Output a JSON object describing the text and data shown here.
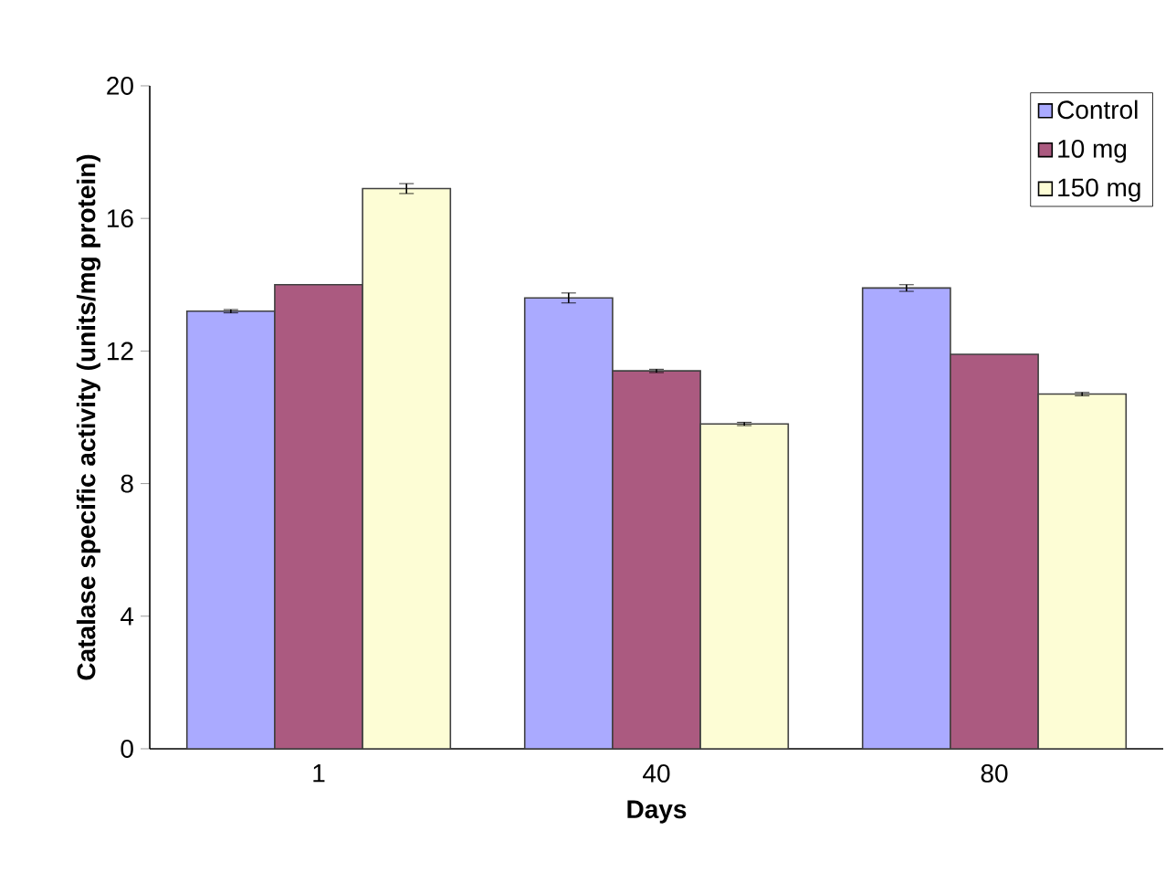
{
  "chart_data": {
    "type": "bar",
    "xlabel": "Days",
    "ylabel": "Catalase specific activity (units/mg protein)",
    "categories": [
      "1",
      "40",
      "80"
    ],
    "series": [
      {
        "name": "Control",
        "color": "#aaaaff",
        "values": [
          13.2,
          13.6,
          13.9
        ],
        "errors": [
          0.05,
          0.15,
          0.1
        ]
      },
      {
        "name": "10 mg",
        "color": "#ab5a80",
        "values": [
          14.0,
          11.4,
          11.9
        ],
        "errors": [
          null,
          0.05,
          null
        ]
      },
      {
        "name": "150 mg",
        "color": "#fdfdd5",
        "values": [
          16.9,
          9.8,
          10.7
        ],
        "errors": [
          0.15,
          0.05,
          0.05
        ]
      }
    ],
    "ylim": [
      0,
      20
    ],
    "yticks": [
      0,
      4,
      8,
      12,
      16,
      20
    ],
    "grid": false,
    "legend": "top right"
  }
}
